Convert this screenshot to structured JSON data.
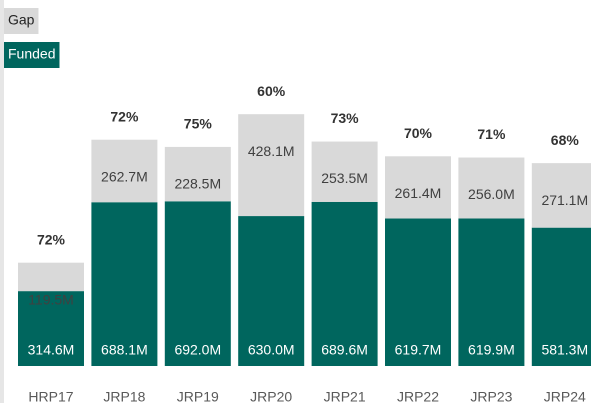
{
  "chart_data": {
    "type": "stacked-bar",
    "categories": [
      "HRP17",
      "JRP18",
      "JRP19",
      "JRP20",
      "JRP21",
      "JRP22",
      "JRP23",
      "JRP24"
    ],
    "series": [
      {
        "name": "Funded",
        "color": "#00665e",
        "values": [
          314.6,
          688.1,
          692.0,
          630.0,
          689.6,
          619.7,
          619.9,
          581.3
        ],
        "value_labels": [
          "314.6M",
          "688.1M",
          "692.0M",
          "630.0M",
          "689.6M",
          "619.7M",
          "619.9M",
          "581.3M"
        ]
      },
      {
        "name": "Gap",
        "color": "#d9d9d9",
        "values": [
          119.5,
          262.7,
          228.5,
          428.1,
          253.5,
          261.4,
          256.0,
          271.1
        ],
        "value_labels": [
          "119.5M",
          "262.7M",
          "228.5M",
          "428.1M",
          "253.5M",
          "261.4M",
          "256.0M",
          "271.1M"
        ]
      }
    ],
    "percent_labels": [
      "72%",
      "72%",
      "75%",
      "60%",
      "73%",
      "70%",
      "71%",
      "68%"
    ]
  }
}
